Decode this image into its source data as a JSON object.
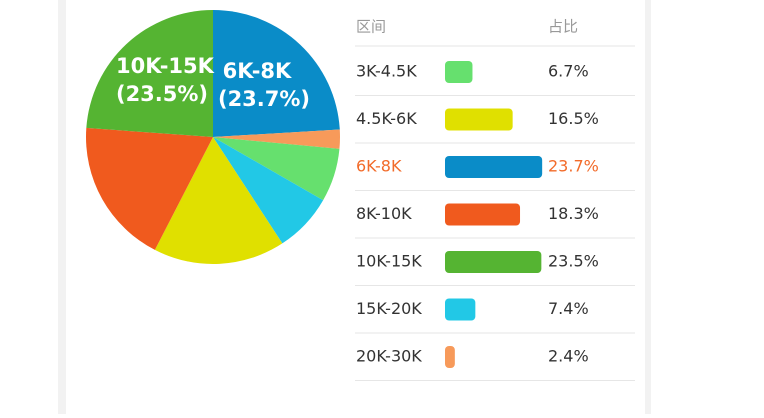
{
  "chart_data": {
    "type": "pie",
    "header": [
      "区间",
      "占比"
    ],
    "categories": [
      "3K-4.5K",
      "4.5K-6K",
      "6K-8K",
      "8K-10K",
      "10K-15K",
      "15K-20K",
      "20K-30K"
    ],
    "values": [
      6.7,
      16.5,
      23.7,
      18.3,
      23.5,
      7.4,
      2.4
    ],
    "value_labels": [
      "6.7%",
      "16.5%",
      "23.7%",
      "18.3%",
      "23.5%",
      "7.4%",
      "2.4%"
    ],
    "colors": [
      "#66e06e",
      "#e0e000",
      "#0a8cc8",
      "#f05a1e",
      "#55b432",
      "#22c8e6",
      "#f79a5a"
    ],
    "highlight": 2,
    "pie_labels": [
      {
        "category": 2,
        "text": "6K-8K",
        "sub": "(23.7%)"
      },
      {
        "category": 4,
        "text": "10K-15K",
        "sub": "(23.5%)"
      }
    ]
  }
}
